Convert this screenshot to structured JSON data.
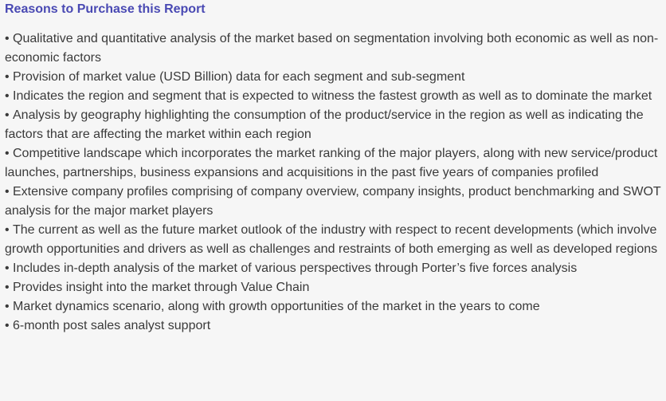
{
  "section": {
    "title": "Reasons to Purchase this Report",
    "bullet_symbol": "•",
    "items": [
      "Qualitative and quantitative analysis of the market based on segmentation involving both economic as well as non-economic factors",
      "Provision of market value (USD Billion) data for each segment and sub-segment",
      "Indicates the region and segment that is expected to witness the fastest growth as well as to dominate the market",
      "Analysis by geography highlighting the consumption of the product/service in the region as well as indicating the factors that are affecting the market within each region",
      "Competitive landscape which incorporates the market ranking of the major players, along with new service/product launches, partnerships, business expansions and acquisitions in the past five years of companies profiled",
      "Extensive company profiles comprising of company overview, company insights, product benchmarking and SWOT analysis for the major market players",
      "The current as well as the future market outlook of the industry with respect to recent developments (which involve growth opportunities and drivers as well as challenges and restraints of both emerging as well as developed regions",
      "Includes in-depth analysis of the market of various perspectives through Porter’s five forces analysis",
      "Provides insight into the market through Value Chain",
      "Market dynamics scenario, along with growth opportunities of the market in the years to come",
      "6-month post sales analyst support"
    ]
  }
}
